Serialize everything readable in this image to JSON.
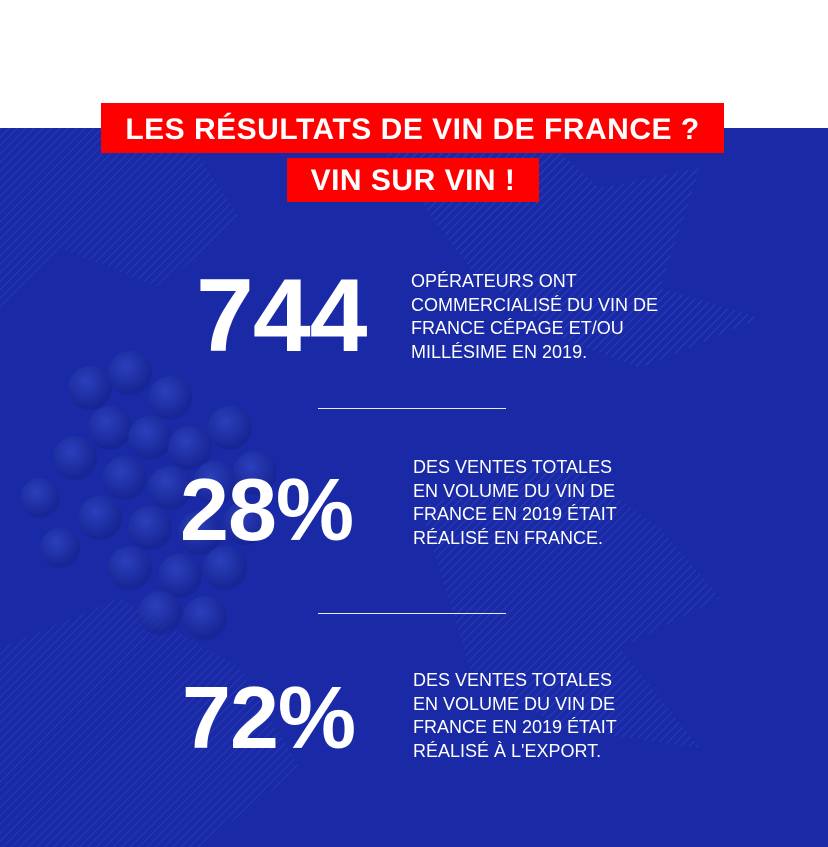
{
  "heading": {
    "line1": "LES RÉSULTATS DE VIN DE FRANCE ?",
    "line2": "VIN SUR VIN !"
  },
  "stats": [
    {
      "value": "744",
      "text": "OPÉRATEURS ONT COMMERCIALISÉ DU VIN DE FRANCE CÉPAGE ET/OU MILLÉSIME EN 2019."
    },
    {
      "value": "28%",
      "text": "DES VENTES TOTALES EN VOLUME DU VIN DE FRANCE EN 2019 ÉTAIT RÉALISÉ EN FRANCE."
    },
    {
      "value": "72%",
      "text": "DES VENTES TOTALES EN VOLUME DU VIN DE FRANCE EN 2019 ÉTAIT RÉALISÉ À L'EXPORT."
    }
  ],
  "colors": {
    "background_blue": "#1a2aa6",
    "title_red": "#ff0000",
    "text_white": "#ffffff"
  },
  "decoration": "grape-vine-illustration"
}
